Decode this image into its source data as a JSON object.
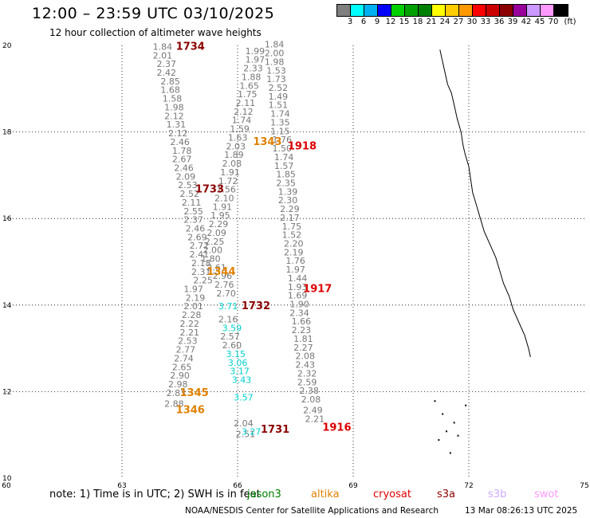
{
  "header": {
    "title": "12:00 – 23:59 UTC 03/10/2025",
    "subtitle": "12 hour collection of altimeter wave heights"
  },
  "legend": {
    "colors": [
      "#7f7f7f",
      "#00ffff",
      "#00b0f0",
      "#0000ff",
      "#00d000",
      "#00a000",
      "#008000",
      "#ffff00",
      "#ffcc00",
      "#ff9900",
      "#ff0000",
      "#cc0000",
      "#8b0000",
      "#990099",
      "#cc99ff",
      "#ff99ff",
      "#000000"
    ],
    "labels": [
      "3",
      "6",
      "9",
      "12",
      "15",
      "18",
      "21",
      "24",
      "27",
      "30",
      "33",
      "36",
      "39",
      "42",
      "45",
      "70",
      "(ft)"
    ]
  },
  "map": {
    "lon_ticks": [
      "60",
      "63",
      "66",
      "69",
      "72",
      "75"
    ],
    "lat_ticks": [
      "20",
      "18",
      "16",
      "14",
      "12",
      "10"
    ],
    "tracks": [
      {
        "color": "#777777",
        "points": [
          {
            "lon": 63.8,
            "lat": 19.9,
            "v": "1.84"
          },
          {
            "lon": 63.8,
            "lat": 19.7,
            "v": "2.01"
          },
          {
            "lon": 63.9,
            "lat": 19.5,
            "v": "2.37"
          },
          {
            "lon": 63.9,
            "lat": 19.3,
            "v": "2.42"
          },
          {
            "lon": 64.0,
            "lat": 19.1,
            "v": "2.85"
          },
          {
            "lon": 64.0,
            "lat": 18.9,
            "v": "1.68"
          },
          {
            "lon": 64.05,
            "lat": 18.7,
            "v": "1.58"
          },
          {
            "lon": 64.1,
            "lat": 18.5,
            "v": "1.98"
          },
          {
            "lon": 64.1,
            "lat": 18.3,
            "v": "2.12"
          },
          {
            "lon": 64.15,
            "lat": 18.1,
            "v": "1.31"
          },
          {
            "lon": 64.2,
            "lat": 17.9,
            "v": "2.12"
          },
          {
            "lon": 64.25,
            "lat": 17.7,
            "v": "2.46"
          },
          {
            "lon": 64.3,
            "lat": 17.5,
            "v": "1.78"
          },
          {
            "lon": 64.3,
            "lat": 17.3,
            "v": "2.67"
          },
          {
            "lon": 64.35,
            "lat": 17.1,
            "v": "2.46"
          },
          {
            "lon": 64.4,
            "lat": 16.9,
            "v": "2.09"
          },
          {
            "lon": 64.45,
            "lat": 16.7,
            "v": "2.53"
          },
          {
            "lon": 64.5,
            "lat": 16.5,
            "v": "2.52"
          },
          {
            "lon": 64.55,
            "lat": 16.3,
            "v": "2.11"
          },
          {
            "lon": 64.6,
            "lat": 16.1,
            "v": "2.55"
          },
          {
            "lon": 64.6,
            "lat": 15.9,
            "v": "2.37"
          },
          {
            "lon": 64.65,
            "lat": 15.7,
            "v": "2.46"
          },
          {
            "lon": 64.7,
            "lat": 15.5,
            "v": "2.69"
          },
          {
            "lon": 64.75,
            "lat": 15.3,
            "v": "2.72"
          },
          {
            "lon": 64.75,
            "lat": 15.1,
            "v": "2.41"
          },
          {
            "lon": 64.8,
            "lat": 14.9,
            "v": "2.18"
          },
          {
            "lon": 64.8,
            "lat": 14.7,
            "v": "2.31"
          },
          {
            "lon": 64.85,
            "lat": 14.5,
            "v": "2.25"
          },
          {
            "lon": 64.6,
            "lat": 14.3,
            "v": "1.97"
          },
          {
            "lon": 64.65,
            "lat": 14.1,
            "v": "2.19"
          },
          {
            "lon": 64.6,
            "lat": 13.9,
            "v": "2.01"
          },
          {
            "lon": 64.55,
            "lat": 13.7,
            "v": "2.28"
          },
          {
            "lon": 64.5,
            "lat": 13.5,
            "v": "2.22"
          },
          {
            "lon": 64.5,
            "lat": 13.3,
            "v": "2.21"
          },
          {
            "lon": 64.45,
            "lat": 13.1,
            "v": "2.53"
          },
          {
            "lon": 64.4,
            "lat": 12.9,
            "v": "2.77"
          },
          {
            "lon": 64.35,
            "lat": 12.7,
            "v": "2.74"
          },
          {
            "lon": 64.3,
            "lat": 12.5,
            "v": "2.65"
          },
          {
            "lon": 64.25,
            "lat": 12.3,
            "v": "2.90"
          },
          {
            "lon": 64.2,
            "lat": 12.1,
            "v": "2.98"
          },
          {
            "lon": 64.15,
            "lat": 11.9,
            "v": "2.83"
          },
          {
            "lon": 64.1,
            "lat": 11.65,
            "v": "2.88"
          }
        ]
      },
      {
        "color": "#777777",
        "points": [
          {
            "lon": 66.2,
            "lat": 19.8,
            "v": "1.99"
          },
          {
            "lon": 66.2,
            "lat": 19.6,
            "v": "1.97"
          },
          {
            "lon": 66.15,
            "lat": 19.4,
            "v": "2.33"
          },
          {
            "lon": 66.1,
            "lat": 19.2,
            "v": "1.88"
          },
          {
            "lon": 66.05,
            "lat": 19.0,
            "v": "1.65"
          },
          {
            "lon": 66.0,
            "lat": 18.8,
            "v": "1.75"
          },
          {
            "lon": 65.95,
            "lat": 18.6,
            "v": "2.11"
          },
          {
            "lon": 65.9,
            "lat": 18.4,
            "v": "2.12"
          },
          {
            "lon": 65.85,
            "lat": 18.2,
            "v": "1.74"
          },
          {
            "lon": 65.8,
            "lat": 18.0,
            "v": "1.59"
          },
          {
            "lon": 65.75,
            "lat": 17.8,
            "v": "1.63"
          },
          {
            "lon": 65.7,
            "lat": 17.6,
            "v": "2.03"
          },
          {
            "lon": 65.65,
            "lat": 17.4,
            "v": "1.89"
          },
          {
            "lon": 65.6,
            "lat": 17.2,
            "v": "2.08"
          },
          {
            "lon": 65.55,
            "lat": 17.0,
            "v": "1.91"
          },
          {
            "lon": 65.5,
            "lat": 16.8,
            "v": "1.72"
          },
          {
            "lon": 65.45,
            "lat": 16.6,
            "v": "1.56"
          },
          {
            "lon": 65.4,
            "lat": 16.4,
            "v": "2.10"
          },
          {
            "lon": 65.35,
            "lat": 16.2,
            "v": "1.91"
          },
          {
            "lon": 65.3,
            "lat": 16.0,
            "v": "1.95"
          },
          {
            "lon": 65.25,
            "lat": 15.8,
            "v": "2.29"
          },
          {
            "lon": 65.2,
            "lat": 15.6,
            "v": "2.09"
          },
          {
            "lon": 65.15,
            "lat": 15.4,
            "v": "2.25"
          },
          {
            "lon": 65.1,
            "lat": 15.2,
            "v": "2.00"
          },
          {
            "lon": 65.05,
            "lat": 15.0,
            "v": "1.80"
          },
          {
            "lon": 65.2,
            "lat": 14.8,
            "v": "2.61"
          },
          {
            "lon": 65.35,
            "lat": 14.6,
            "v": "2.96"
          },
          {
            "lon": 65.4,
            "lat": 14.4,
            "v": "2.76"
          },
          {
            "lon": 65.45,
            "lat": 14.2,
            "v": "2.70"
          },
          {
            "lon": 65.5,
            "lat": 13.6,
            "v": "2.16"
          },
          {
            "lon": 65.55,
            "lat": 13.2,
            "v": "2.57"
          },
          {
            "lon": 65.6,
            "lat": 13.0,
            "v": "2.60"
          },
          {
            "lon": 65.9,
            "lat": 11.2,
            "v": "2.04"
          },
          {
            "lon": 65.95,
            "lat": 10.95,
            "v": "2.51"
          }
        ]
      },
      {
        "color": "#777777",
        "points": [
          {
            "lon": 66.7,
            "lat": 19.95,
            "v": "1.84"
          },
          {
            "lon": 66.7,
            "lat": 19.75,
            "v": "2.00"
          },
          {
            "lon": 66.7,
            "lat": 19.55,
            "v": "1.98"
          },
          {
            "lon": 66.75,
            "lat": 19.35,
            "v": "1.53"
          },
          {
            "lon": 66.75,
            "lat": 19.15,
            "v": "1.73"
          },
          {
            "lon": 66.8,
            "lat": 18.95,
            "v": "2.52"
          },
          {
            "lon": 66.8,
            "lat": 18.75,
            "v": "1.49"
          },
          {
            "lon": 66.8,
            "lat": 18.55,
            "v": "1.51"
          },
          {
            "lon": 66.85,
            "lat": 18.35,
            "v": "1.74"
          },
          {
            "lon": 66.85,
            "lat": 18.15,
            "v": "1.35"
          },
          {
            "lon": 66.85,
            "lat": 17.95,
            "v": "1.15"
          },
          {
            "lon": 66.9,
            "lat": 17.75,
            "v": "1.76"
          },
          {
            "lon": 66.9,
            "lat": 17.55,
            "v": "1.50"
          },
          {
            "lon": 66.95,
            "lat": 17.35,
            "v": "1.74"
          },
          {
            "lon": 66.95,
            "lat": 17.15,
            "v": "1.57"
          },
          {
            "lon": 67.0,
            "lat": 16.95,
            "v": "1.85"
          },
          {
            "lon": 67.0,
            "lat": 16.75,
            "v": "2.35"
          },
          {
            "lon": 67.05,
            "lat": 16.55,
            "v": "1.39"
          },
          {
            "lon": 67.05,
            "lat": 16.35,
            "v": "2.30"
          },
          {
            "lon": 67.1,
            "lat": 16.15,
            "v": "2.29"
          },
          {
            "lon": 67.1,
            "lat": 15.95,
            "v": "2.17"
          },
          {
            "lon": 67.15,
            "lat": 15.75,
            "v": "1.75"
          },
          {
            "lon": 67.15,
            "lat": 15.55,
            "v": "1.52"
          },
          {
            "lon": 67.2,
            "lat": 15.35,
            "v": "2.20"
          },
          {
            "lon": 67.2,
            "lat": 15.15,
            "v": "2.19"
          },
          {
            "lon": 67.25,
            "lat": 14.95,
            "v": "1.76"
          },
          {
            "lon": 67.25,
            "lat": 14.75,
            "v": "1.97"
          },
          {
            "lon": 67.3,
            "lat": 14.55,
            "v": "1.44"
          },
          {
            "lon": 67.3,
            "lat": 14.35,
            "v": "1.93"
          },
          {
            "lon": 67.3,
            "lat": 14.15,
            "v": "1.69"
          },
          {
            "lon": 67.35,
            "lat": 13.95,
            "v": "1.90"
          },
          {
            "lon": 67.35,
            "lat": 13.75,
            "v": "2.34"
          },
          {
            "lon": 67.4,
            "lat": 13.55,
            "v": "1.66"
          },
          {
            "lon": 67.4,
            "lat": 13.35,
            "v": "2.23"
          },
          {
            "lon": 67.45,
            "lat": 13.15,
            "v": "1.81"
          },
          {
            "lon": 67.45,
            "lat": 12.95,
            "v": "2.27"
          },
          {
            "lon": 67.5,
            "lat": 12.75,
            "v": "2.08"
          },
          {
            "lon": 67.5,
            "lat": 12.55,
            "v": "2.43"
          },
          {
            "lon": 67.55,
            "lat": 12.35,
            "v": "2.32"
          },
          {
            "lon": 67.55,
            "lat": 12.15,
            "v": "2.59"
          },
          {
            "lon": 67.6,
            "lat": 11.95,
            "v": "2.38"
          },
          {
            "lon": 67.65,
            "lat": 11.75,
            "v": "2.08"
          },
          {
            "lon": 67.7,
            "lat": 11.5,
            "v": "2.49"
          },
          {
            "lon": 67.75,
            "lat": 11.3,
            "v": "2.21"
          }
        ]
      },
      {
        "color": "#00d0d0",
        "points": [
          {
            "lon": 65.5,
            "lat": 13.9,
            "v": "3.71"
          },
          {
            "lon": 65.6,
            "lat": 13.4,
            "v": "3.59"
          },
          {
            "lon": 65.7,
            "lat": 12.8,
            "v": "3.15"
          },
          {
            "lon": 65.75,
            "lat": 12.6,
            "v": "3.06"
          },
          {
            "lon": 65.8,
            "lat": 12.4,
            "v": "3.17"
          },
          {
            "lon": 65.85,
            "lat": 12.2,
            "v": "3.43"
          },
          {
            "lon": 65.9,
            "lat": 11.8,
            "v": "3.57"
          },
          {
            "lon": 66.1,
            "lat": 11.0,
            "v": "3.27"
          }
        ]
      }
    ],
    "time_labels": [
      {
        "lon": 64.4,
        "lat": 19.9,
        "text": "1734",
        "color": "#8b0000"
      },
      {
        "lon": 66.4,
        "lat": 17.7,
        "text": "1343",
        "color": "#e08000"
      },
      {
        "lon": 67.3,
        "lat": 17.6,
        "text": "1918",
        "color": "#dd0000"
      },
      {
        "lon": 64.9,
        "lat": 16.6,
        "text": "1733",
        "color": "#8b0000"
      },
      {
        "lon": 65.2,
        "lat": 14.7,
        "text": "1344",
        "color": "#e08000"
      },
      {
        "lon": 67.7,
        "lat": 14.3,
        "text": "1917",
        "color": "#dd0000"
      },
      {
        "lon": 66.1,
        "lat": 13.9,
        "text": "1732",
        "color": "#8b0000"
      },
      {
        "lon": 64.5,
        "lat": 11.9,
        "text": "1345",
        "color": "#e08000"
      },
      {
        "lon": 64.4,
        "lat": 11.5,
        "text": "1346",
        "color": "#e08000"
      },
      {
        "lon": 66.6,
        "lat": 11.05,
        "text": "1731",
        "color": "#8b0000"
      },
      {
        "lon": 68.2,
        "lat": 11.1,
        "text": "1916",
        "color": "#dd0000"
      }
    ]
  },
  "notes": {
    "text": "note: 1) Time is in UTC; 2) SWH is in feet",
    "satellites": [
      {
        "name": "jason3",
        "color": "#008000"
      },
      {
        "name": "altika",
        "color": "#e08000"
      },
      {
        "name": "cryosat",
        "color": "#dd0000"
      },
      {
        "name": "s3a",
        "color": "#8b0000"
      },
      {
        "name": "s3b",
        "color": "#ccaaff"
      },
      {
        "name": "swot",
        "color": "#ff99ff"
      }
    ]
  },
  "footer": {
    "agency": "NOAA/NESDIS Center for Satellite Applications and Research",
    "timestamp": "13 Mar 08:26:13 UTC 2025"
  }
}
